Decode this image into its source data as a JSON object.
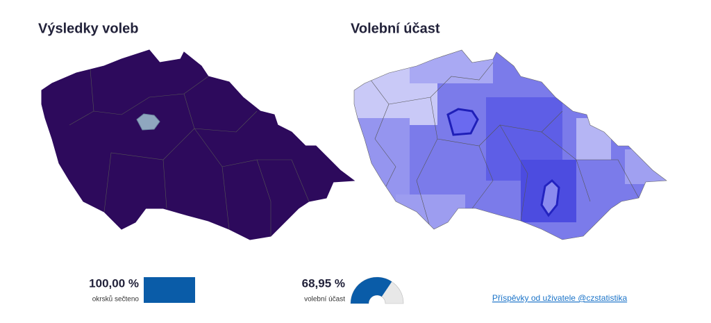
{
  "left_map": {
    "title": "Výsledky voleb"
  },
  "right_map": {
    "title": "Volební účast"
  },
  "stats": [
    {
      "value": 100,
      "label": "100,00 %",
      "caption": "okrsků sečteno"
    },
    {
      "value": 68.95,
      "label": "68,95 %",
      "caption": "volební účast"
    }
  ],
  "link": "Příspěvky od uživatele @czstatistika"
}
